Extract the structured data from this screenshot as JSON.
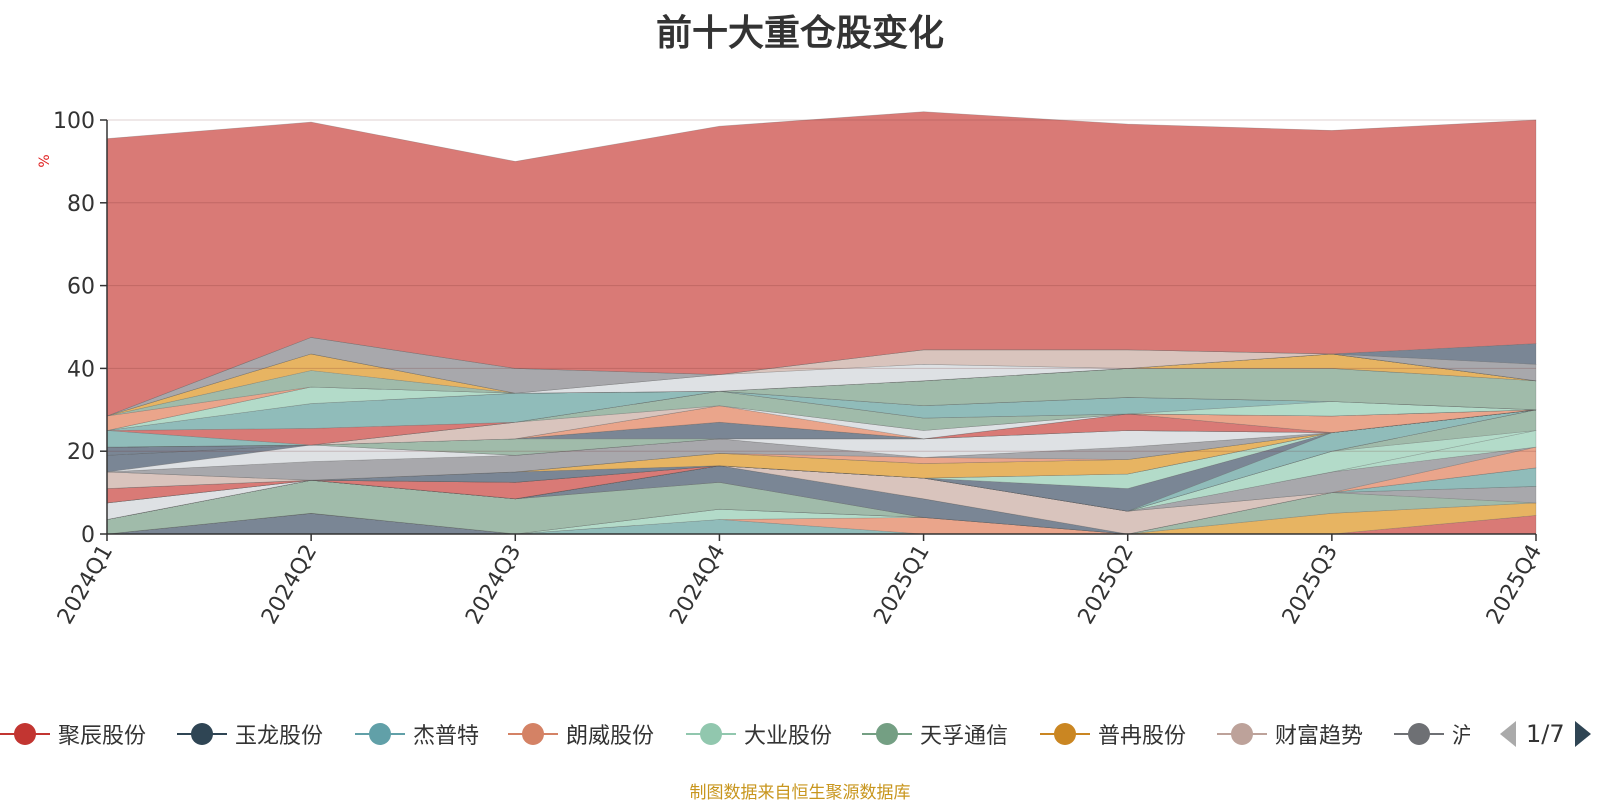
{
  "title": "前十大重仓股变化",
  "source_note": "制图数据来自恒生聚源数据库",
  "pager": {
    "text": "1/7"
  },
  "chart_data": {
    "type": "area",
    "stacked": true,
    "ylabel": "%",
    "ylim": [
      0,
      100
    ],
    "yticks": [
      0,
      20,
      40,
      60,
      80,
      100
    ],
    "categories": [
      "2024Q1",
      "2024Q2",
      "2024Q3",
      "2024Q4",
      "2025Q1",
      "2025Q2",
      "2025Q3",
      "2025Q4"
    ],
    "series": [
      {
        "name": "",
        "color": "#73808f",
        "values": [
          0,
          5,
          0,
          0,
          0,
          0,
          0,
          0
        ]
      },
      {
        "name": "",
        "color": "#8ab8b6",
        "values": [
          0,
          0,
          0,
          3.5,
          0,
          0,
          0,
          0
        ]
      },
      {
        "name": "",
        "color": "#e9a085",
        "values": [
          0,
          0,
          0,
          0,
          4,
          0,
          0,
          0
        ]
      },
      {
        "name": "",
        "color": "#afd9c6",
        "values": [
          0,
          0,
          0,
          2.5,
          0,
          0,
          0,
          0
        ]
      },
      {
        "name": "",
        "color": "#d7736f",
        "values": [
          0,
          0,
          0,
          0,
          0,
          0,
          0,
          4.5
        ]
      },
      {
        "name": "",
        "color": "#e6b05a",
        "values": [
          0,
          0,
          0,
          0,
          0,
          0,
          5,
          3
        ]
      },
      {
        "name": "",
        "color": "#9bb7a5",
        "values": [
          3.5,
          8,
          8.5,
          6.5,
          0,
          0,
          5,
          0
        ]
      },
      {
        "name": "",
        "color": "#a3a3a8",
        "values": [
          0,
          0,
          0,
          0,
          0,
          0,
          0,
          4
        ]
      },
      {
        "name": "",
        "color": "#73808f",
        "values": [
          0,
          0,
          0,
          4,
          4.5,
          0,
          0,
          0
        ]
      },
      {
        "name": "",
        "color": "#8ab8b6",
        "values": [
          0,
          0,
          0,
          0,
          0,
          0,
          0,
          4.5
        ]
      },
      {
        "name": "",
        "color": "#d7c1b9",
        "values": [
          0,
          0,
          0,
          0,
          5,
          5.5,
          0,
          0
        ]
      },
      {
        "name": "",
        "color": "#e9a085",
        "values": [
          0,
          0,
          0,
          0,
          0,
          0,
          0,
          5
        ]
      },
      {
        "name": "",
        "color": "#a3a3a8",
        "values": [
          0,
          0,
          0,
          0,
          0,
          0,
          5,
          0
        ]
      },
      {
        "name": "",
        "color": "#afd9c6",
        "values": [
          0,
          0,
          0,
          0,
          0,
          0,
          0,
          4
        ]
      },
      {
        "name": "",
        "color": "#afd9c6",
        "values": [
          0,
          0,
          0,
          0,
          0,
          0,
          5,
          0
        ]
      },
      {
        "name": "",
        "color": "#9bb7a5",
        "values": [
          0,
          0,
          0,
          0,
          0,
          0,
          0,
          5
        ]
      },
      {
        "name": "",
        "color": "#dcdfe3",
        "values": [
          4,
          0,
          0,
          0,
          0,
          0,
          0,
          0
        ]
      },
      {
        "name": "",
        "color": "#d7736f",
        "values": [
          0,
          0,
          4,
          0,
          0,
          0,
          0,
          0
        ]
      },
      {
        "name": "",
        "color": "#8ab8b6",
        "values": [
          0,
          0,
          0,
          0,
          0,
          0,
          4.5,
          0
        ]
      },
      {
        "name": "",
        "color": "#73808f",
        "values": [
          0,
          0,
          0,
          0,
          0,
          5.5,
          0,
          0
        ]
      },
      {
        "name": "",
        "color": "#afd9c6",
        "values": [
          0,
          0,
          0,
          0,
          0,
          3.5,
          0,
          0
        ]
      },
      {
        "name": "",
        "color": "#d7736f",
        "values": [
          3.5,
          0,
          0,
          0,
          0,
          0,
          0,
          0
        ]
      },
      {
        "name": "",
        "color": "#73808f",
        "values": [
          0,
          0,
          2.5,
          0,
          0,
          0,
          0,
          0
        ]
      },
      {
        "name": "",
        "color": "#e6b05a",
        "values": [
          0,
          0,
          0,
          3,
          3.5,
          3.5,
          0,
          0
        ]
      },
      {
        "name": "",
        "color": "#d7c1b9",
        "values": [
          4,
          0,
          0,
          0,
          0,
          0,
          0,
          0
        ]
      },
      {
        "name": "",
        "color": "#e9a085",
        "values": [
          0,
          0,
          0,
          0,
          1.5,
          0,
          0,
          0
        ]
      },
      {
        "name": "",
        "color": "#a3a3a8",
        "values": [
          0,
          4.5,
          4,
          3.5,
          0,
          3,
          0,
          0
        ]
      },
      {
        "name": "",
        "color": "#dcdfe3",
        "values": [
          0,
          4,
          0,
          0,
          4.5,
          4,
          0,
          0
        ]
      },
      {
        "name": "",
        "color": "#73808f",
        "values": [
          4,
          0,
          0,
          0,
          0,
          0,
          0,
          0
        ]
      },
      {
        "name": "",
        "color": "#9bb7a5",
        "values": [
          0,
          0,
          4,
          0,
          0,
          0,
          0,
          0
        ]
      },
      {
        "name": "",
        "color": "#73808f",
        "values": [
          2,
          0,
          0,
          4,
          0,
          0,
          0,
          0
        ]
      },
      {
        "name": "",
        "color": "#d7736f",
        "values": [
          0,
          0,
          0,
          0,
          0,
          4,
          0,
          0
        ]
      },
      {
        "name": "",
        "color": "#e9a085",
        "values": [
          0,
          0,
          0,
          4,
          0,
          0,
          4,
          0
        ]
      },
      {
        "name": "",
        "color": "#dcdfe3",
        "values": [
          0,
          0,
          0,
          0,
          2,
          0,
          0,
          0
        ]
      },
      {
        "name": "",
        "color": "#d7c1b9",
        "values": [
          0,
          0,
          4,
          0,
          0,
          0,
          0,
          0
        ]
      },
      {
        "name": "",
        "color": "#9bb7a5",
        "values": [
          0,
          0,
          0,
          3.5,
          3,
          0,
          0,
          0
        ]
      },
      {
        "name": "",
        "color": "#afd9c6",
        "values": [
          0,
          0,
          0,
          0,
          0,
          0,
          3.5,
          0
        ]
      },
      {
        "name": "",
        "color": "#8ab8b6",
        "values": [
          4,
          0,
          0,
          0,
          3,
          4,
          0,
          0
        ]
      },
      {
        "name": "",
        "color": "#d7736f",
        "values": [
          0,
          4,
          0,
          0,
          0,
          0,
          0,
          0
        ]
      },
      {
        "name": "",
        "color": "#8ab8b6",
        "values": [
          0,
          6,
          7,
          0,
          0,
          0,
          0,
          0
        ]
      },
      {
        "name": "",
        "color": "#9bb7a5",
        "values": [
          0,
          0,
          0,
          0,
          6,
          7,
          8,
          7
        ]
      },
      {
        "name": "",
        "color": "#afd9c6",
        "values": [
          0,
          4,
          0,
          0,
          0,
          0,
          0,
          0
        ]
      },
      {
        "name": "",
        "color": "#e6b05a",
        "values": [
          0,
          0,
          0,
          0,
          0,
          0,
          3.5,
          0
        ]
      },
      {
        "name": "",
        "color": "#e9a085",
        "values": [
          3.5,
          0,
          0,
          0,
          0,
          0,
          0,
          0
        ]
      },
      {
        "name": "",
        "color": "#9bb7a5",
        "values": [
          0,
          4,
          0,
          0,
          0,
          0,
          0,
          0
        ]
      },
      {
        "name": "",
        "color": "#e6b05a",
        "values": [
          0,
          4,
          0,
          0,
          0,
          0,
          0,
          0
        ]
      },
      {
        "name": "",
        "color": "#dcdfe3",
        "values": [
          0,
          0,
          0,
          4,
          4,
          0,
          0,
          0
        ]
      },
      {
        "name": "",
        "color": "#d7c1b9",
        "values": [
          0,
          0,
          0,
          0,
          3.5,
          4.5,
          0,
          0
        ]
      },
      {
        "name": "",
        "color": "#a3a3a8",
        "values": [
          0,
          4,
          6,
          0,
          0,
          0,
          0,
          4
        ]
      },
      {
        "name": "",
        "color": "#73808f",
        "values": [
          0,
          0,
          0,
          0,
          0,
          0,
          0,
          5
        ]
      },
      {
        "name": "聚辰股份",
        "color": "#d7736f",
        "values": [
          67,
          52,
          50,
          60,
          57.5,
          54.5,
          54,
          54
        ]
      }
    ],
    "legend": {
      "position": "bottom",
      "items": [
        {
          "name": "聚辰股份",
          "color": "#c23531"
        },
        {
          "name": "玉龙股份",
          "color": "#2f4554"
        },
        {
          "name": "杰普特",
          "color": "#61a0a8"
        },
        {
          "name": "朗威股份",
          "color": "#d48265"
        },
        {
          "name": "大业股份",
          "color": "#91c7ae"
        },
        {
          "name": "天孚通信",
          "color": "#749f83"
        },
        {
          "name": "普冉股份",
          "color": "#ca8622"
        },
        {
          "name": "财富趋势",
          "color": "#bda29a"
        },
        {
          "name": "沪电",
          "color": "#6e7074"
        }
      ]
    }
  }
}
